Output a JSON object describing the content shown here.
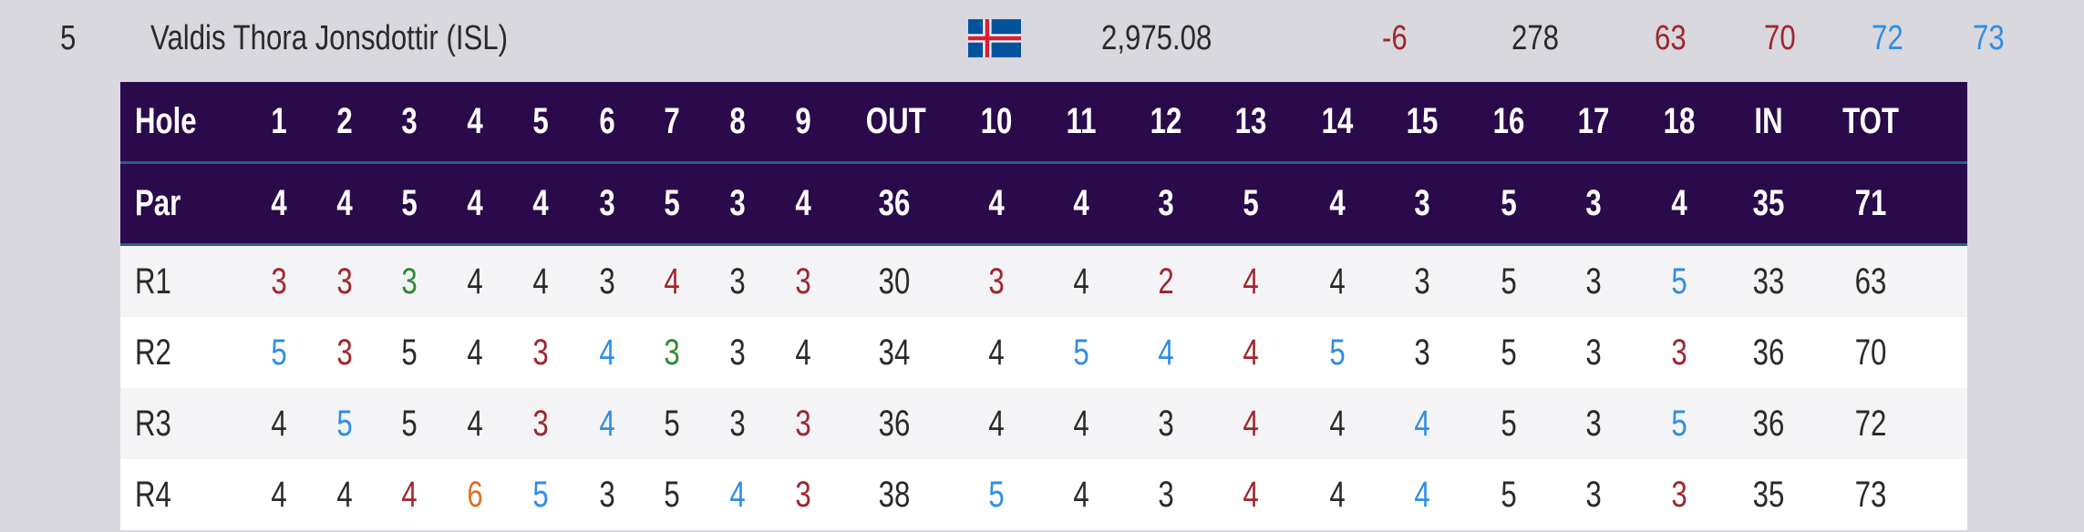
{
  "player": {
    "position": "5",
    "name": "Valdis Thora Jonsdottir (ISL)",
    "flag": "iceland-flag-icon",
    "points": "2,975.08",
    "to_par": "-6",
    "total": "278",
    "rounds": [
      "63",
      "70",
      "72",
      "73"
    ]
  },
  "colors": {
    "header_bg": "#2a0a4a",
    "birdie": "#a0262e",
    "eagle": "#2e8b2e",
    "bogey": "#2f8de4",
    "double_bogey": "#e07020",
    "par": "#2a2a2a"
  },
  "scorecard": {
    "hole_label": "Hole",
    "par_label": "Par",
    "holes": [
      "1",
      "2",
      "3",
      "4",
      "5",
      "6",
      "7",
      "8",
      "9",
      "OUT",
      "10",
      "11",
      "12",
      "13",
      "14",
      "15",
      "16",
      "17",
      "18",
      "IN",
      "TOT"
    ],
    "par": [
      "4",
      "4",
      "5",
      "4",
      "4",
      "3",
      "5",
      "3",
      "4",
      "36",
      "4",
      "4",
      "3",
      "5",
      "4",
      "3",
      "5",
      "3",
      "4",
      "35",
      "71"
    ],
    "rounds": [
      {
        "label": "R1",
        "scores": [
          "3",
          "3",
          "3",
          "4",
          "4",
          "3",
          "4",
          "3",
          "3",
          "30",
          "3",
          "4",
          "2",
          "4",
          "4",
          "3",
          "5",
          "3",
          "5",
          "33",
          "63"
        ]
      },
      {
        "label": "R2",
        "scores": [
          "5",
          "3",
          "5",
          "4",
          "3",
          "4",
          "3",
          "3",
          "4",
          "34",
          "4",
          "5",
          "4",
          "4",
          "5",
          "3",
          "5",
          "3",
          "3",
          "36",
          "70"
        ]
      },
      {
        "label": "R3",
        "scores": [
          "4",
          "5",
          "5",
          "4",
          "3",
          "4",
          "5",
          "3",
          "3",
          "36",
          "4",
          "4",
          "3",
          "4",
          "4",
          "4",
          "5",
          "3",
          "5",
          "36",
          "72"
        ]
      },
      {
        "label": "R4",
        "scores": [
          "4",
          "4",
          "4",
          "6",
          "5",
          "3",
          "5",
          "4",
          "3",
          "38",
          "5",
          "4",
          "3",
          "4",
          "4",
          "4",
          "5",
          "3",
          "3",
          "35",
          "73"
        ]
      }
    ]
  }
}
